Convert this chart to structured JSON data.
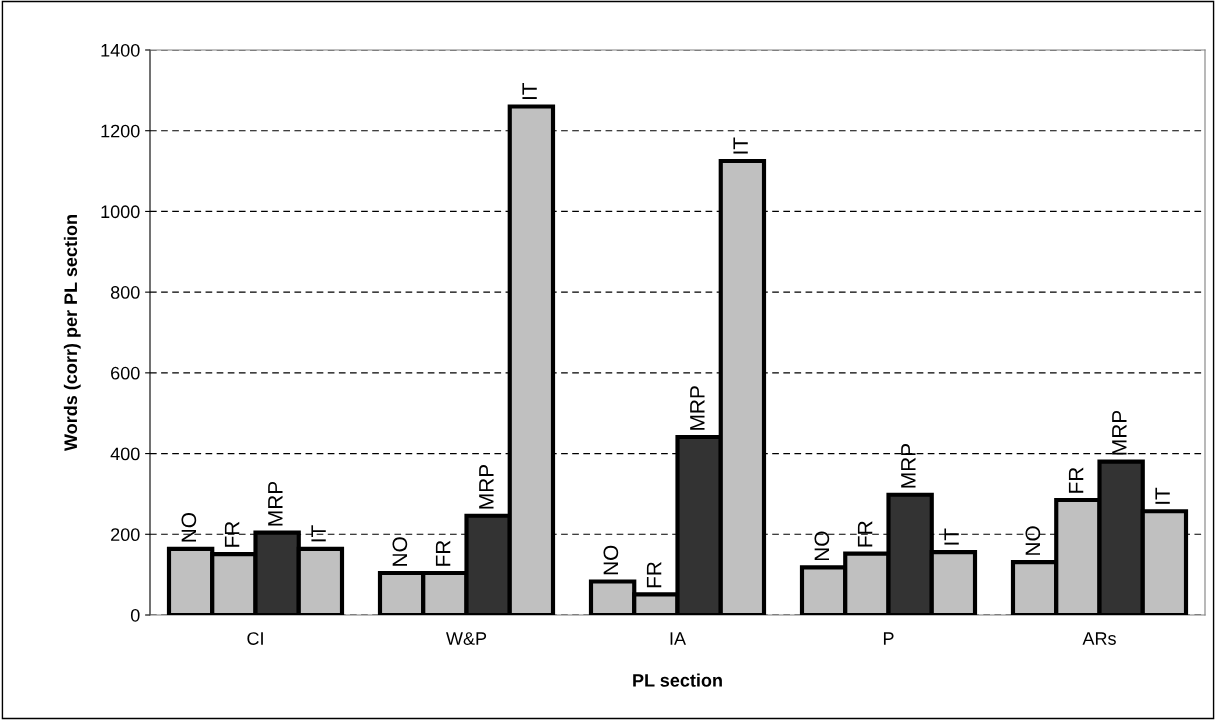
{
  "chart_data": {
    "type": "bar",
    "xlabel": "PL section",
    "ylabel": "Words (corr) per PL section",
    "categories": [
      "CI",
      "W&P",
      "IA",
      "P",
      "ARs"
    ],
    "series": [
      {
        "name": "NO",
        "color": "#c0c0c0",
        "values": [
          164,
          104,
          83,
          118,
          131
        ]
      },
      {
        "name": "FR",
        "color": "#c0c0c0",
        "values": [
          151,
          104,
          51,
          152,
          285
        ]
      },
      {
        "name": "MRP",
        "color": "#333333",
        "values": [
          204,
          246,
          441,
          298,
          380
        ]
      },
      {
        "name": "IT",
        "color": "#c0c0c0",
        "values": [
          164,
          1260,
          1125,
          156,
          257
        ]
      }
    ],
    "ylim": [
      0,
      1400
    ],
    "yticks": [
      0,
      200,
      400,
      600,
      800,
      1000,
      1200,
      1400
    ],
    "grid": "y",
    "legend": false
  }
}
